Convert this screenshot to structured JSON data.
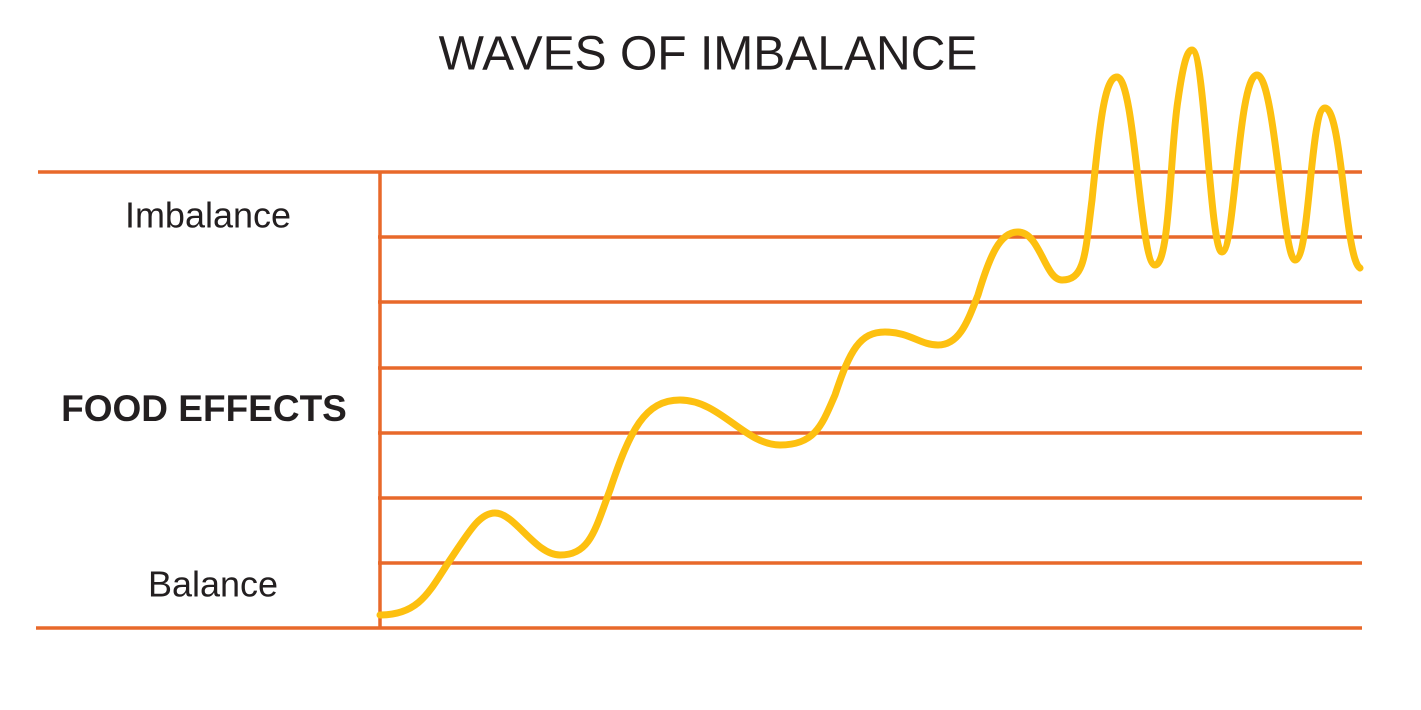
{
  "title": "WAVES OF IMBALANCE",
  "axis_labels": {
    "top": "Imbalance",
    "middle": "FOOD EFFECTS",
    "bottom": "Balance"
  }
}
